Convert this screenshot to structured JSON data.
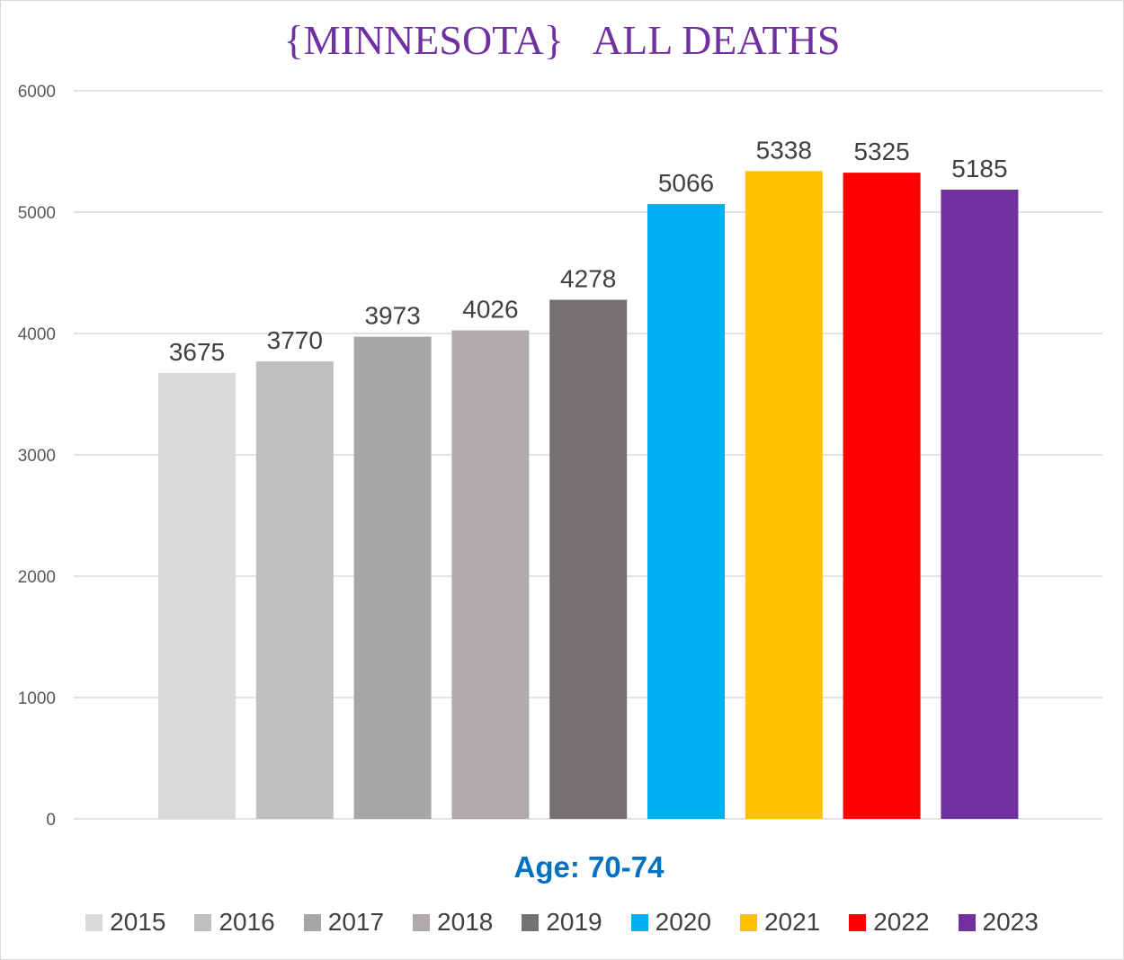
{
  "chart_data": {
    "type": "bar",
    "title": "{MINNESOTA}   ALL DEATHS",
    "xlabel": "Age: 70-74",
    "ylabel": "",
    "ylim": [
      0,
      6000
    ],
    "yticks": [
      0,
      1000,
      2000,
      3000,
      4000,
      5000,
      6000
    ],
    "grid": true,
    "legend_position": "bottom",
    "categories": [
      "2015",
      "2016",
      "2017",
      "2018",
      "2019",
      "2020",
      "2021",
      "2022",
      "2023"
    ],
    "values": [
      3675,
      3770,
      3973,
      4026,
      4278,
      5066,
      5338,
      5325,
      5185
    ],
    "colors": [
      "#d9d9d9",
      "#bfbfbf",
      "#a6a6a6",
      "#afabab",
      "#767171",
      "#00b0f0",
      "#ffc000",
      "#ff0000",
      "#7030a0"
    ],
    "title_color": "#7030a0",
    "xlabel_color": "#0070c0"
  }
}
